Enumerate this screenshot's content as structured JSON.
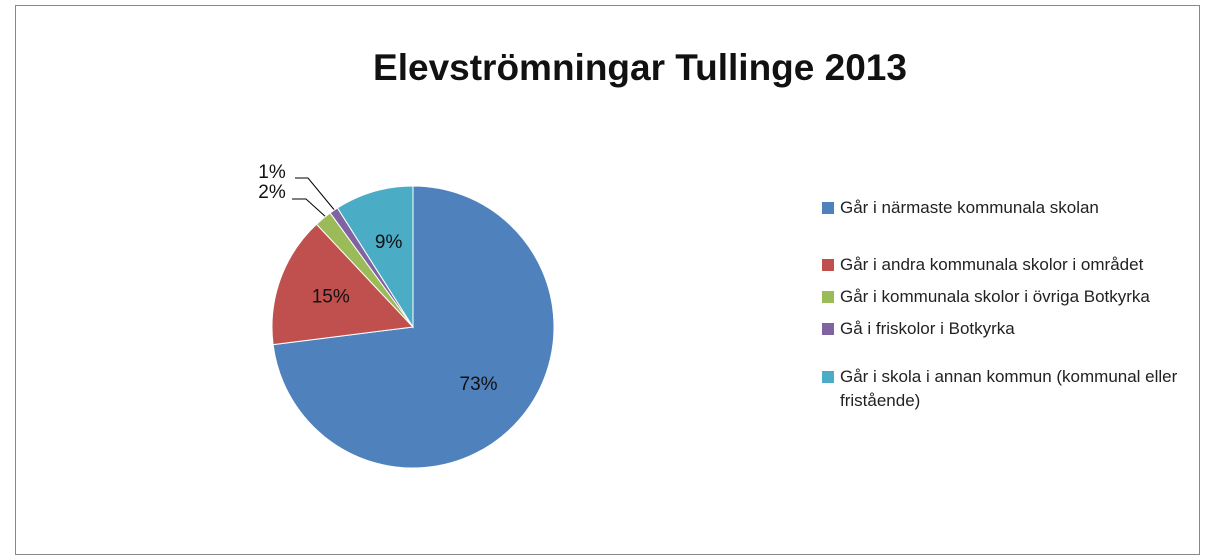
{
  "chart_data": {
    "type": "pie",
    "title": "Elevströmningar Tullinge 2013",
    "categories": [
      "Går i närmaste kommunala skolan",
      "Går i andra kommunala skolor i området",
      "Går i kommunala skolor i övriga Botkyrka",
      "Gå i friskolor i Botkyrka",
      "Går i skola i annan kommun (kommunal eller fristående)"
    ],
    "values": [
      73,
      15,
      2,
      1,
      9
    ],
    "value_labels": [
      "73%",
      "15%",
      "2%",
      "1%",
      "9%"
    ],
    "colors": [
      "#4f81bd",
      "#c0504d",
      "#9bbb59",
      "#8064a2",
      "#4bacc6"
    ],
    "legend": "right"
  }
}
